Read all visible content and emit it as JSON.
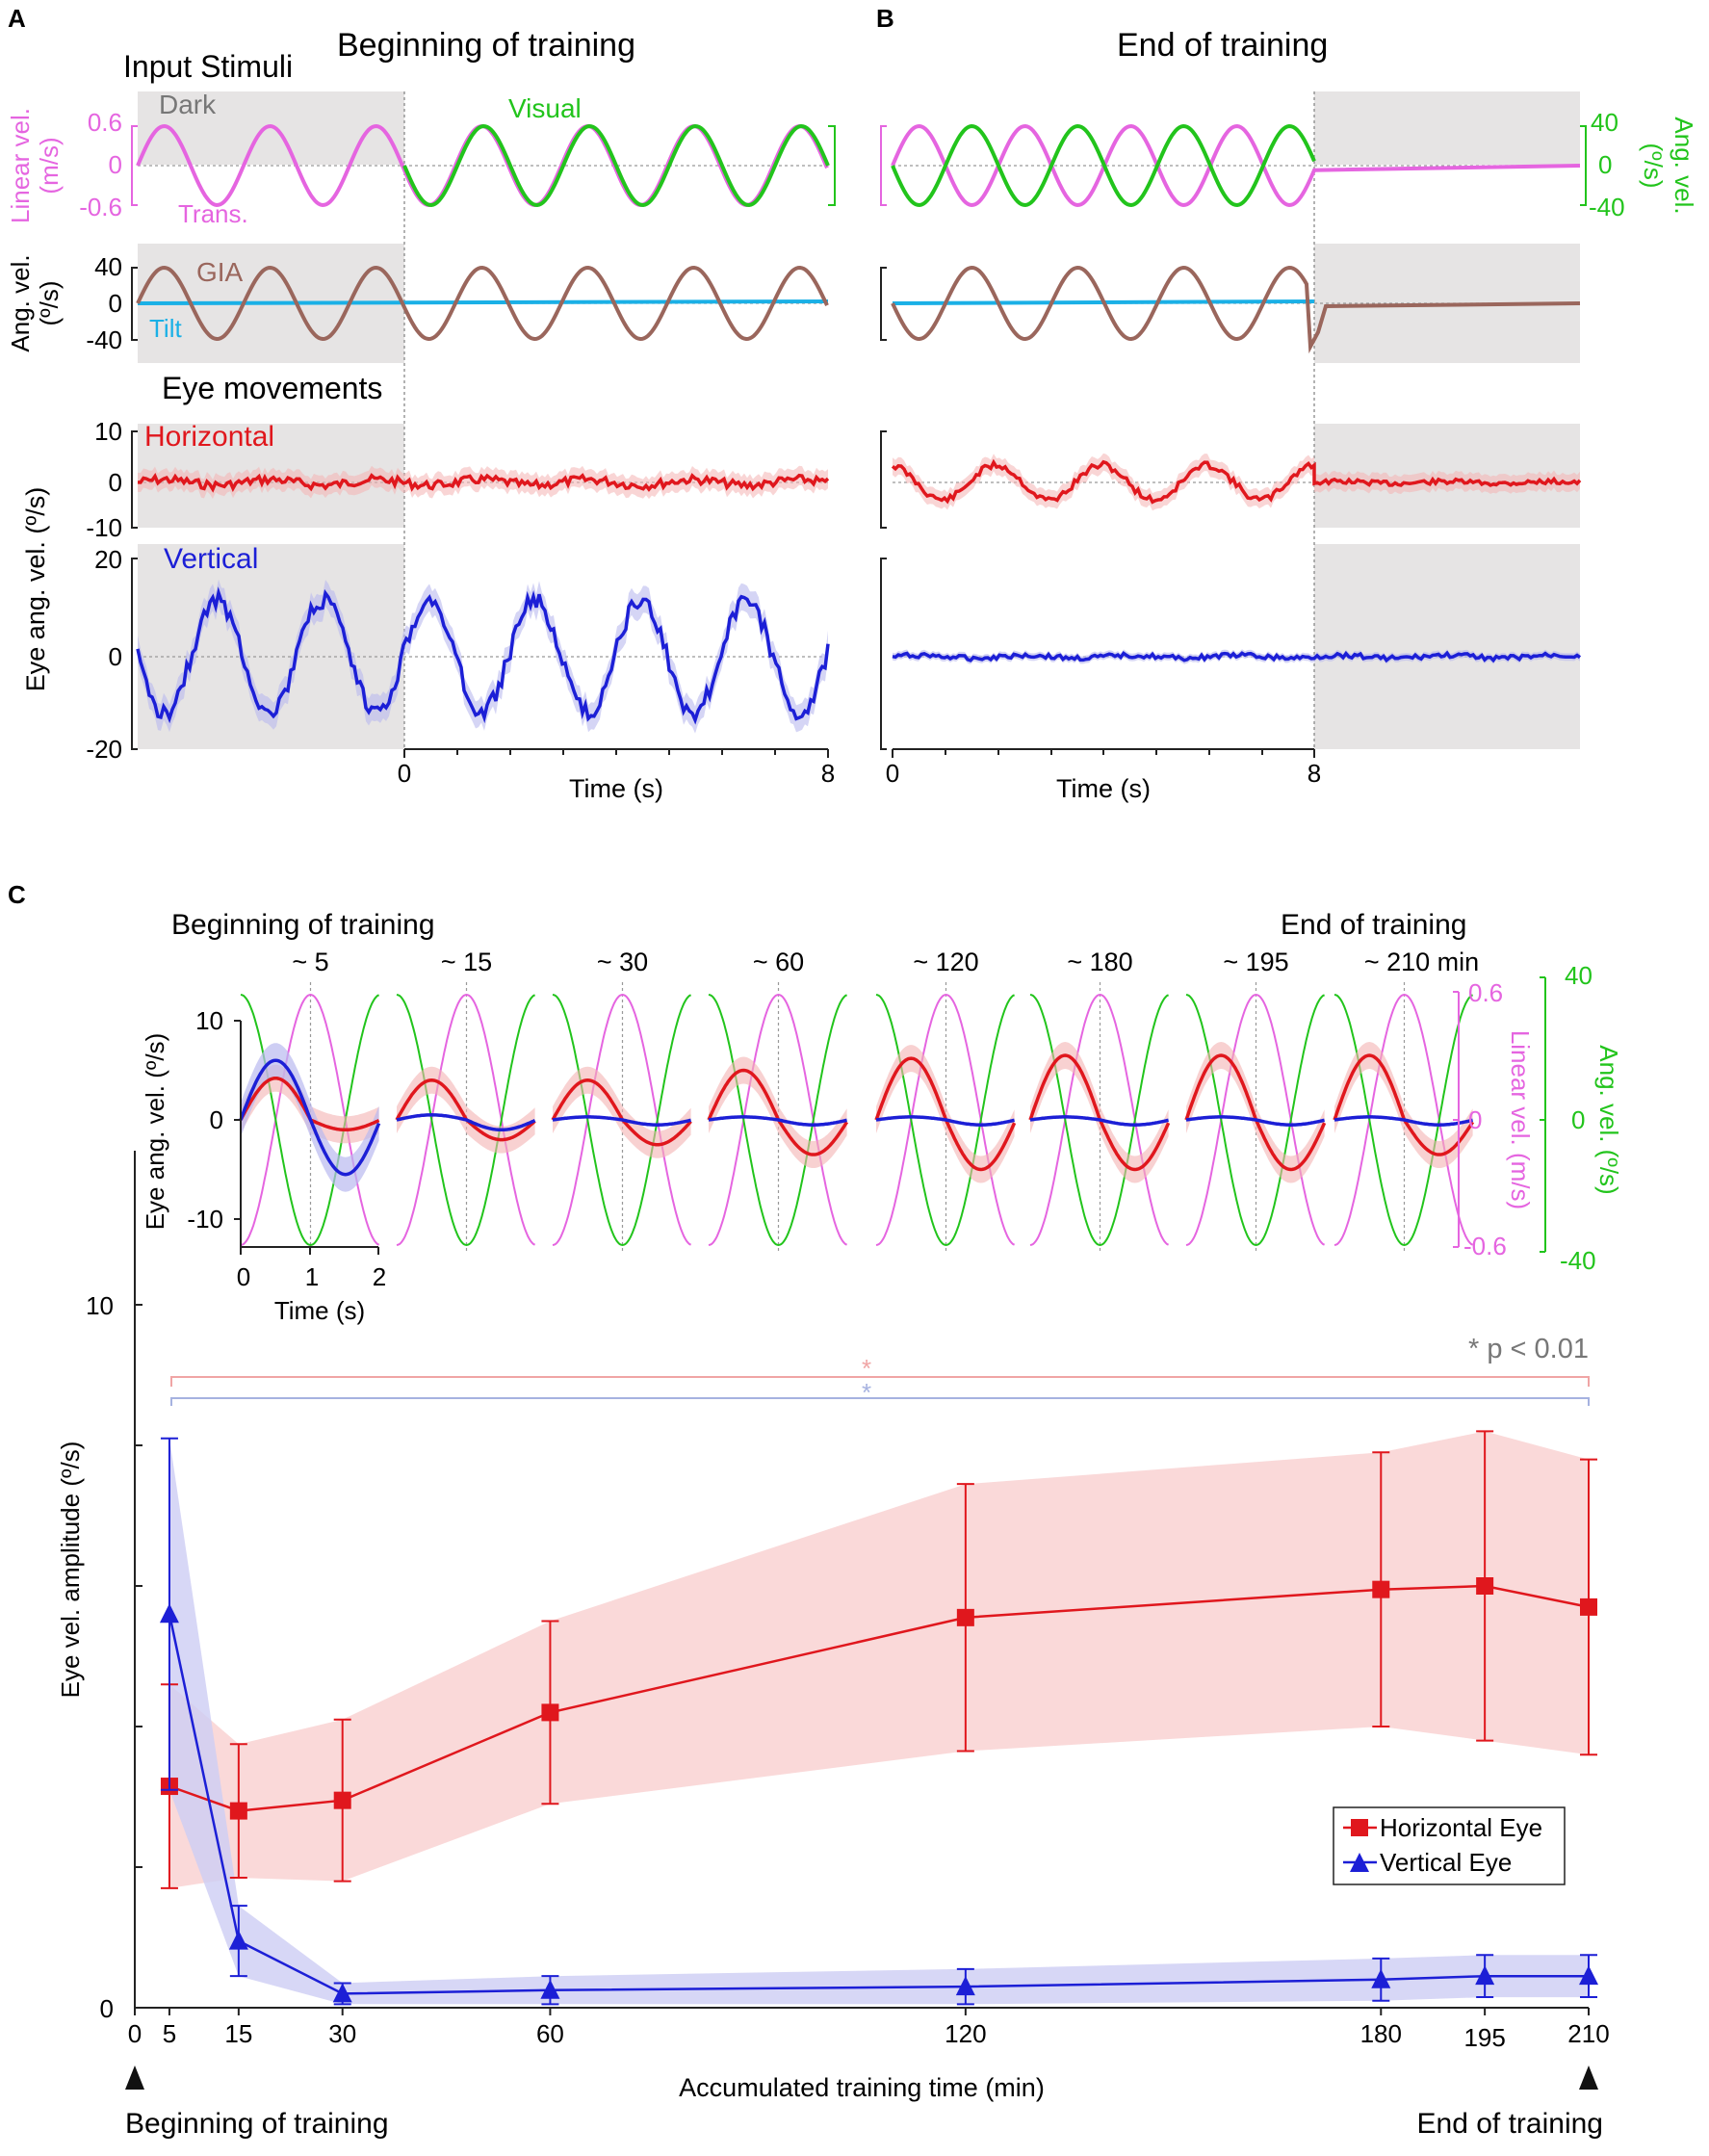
{
  "panels": {
    "A": {
      "letter": "A",
      "title": "Beginning of training"
    },
    "B": {
      "letter": "B",
      "title": "End of training"
    },
    "C": {
      "letter": "C"
    }
  },
  "section_labels": {
    "input": "Input Stimuli",
    "eye": "Eye movements"
  },
  "stim_labels": {
    "dark": "Dark",
    "visual": "Visual",
    "trans": "Trans.",
    "gia": "GIA",
    "tilt": "Tilt",
    "horizontal": "Horizontal",
    "vertical": "Vertical"
  },
  "axis_text": {
    "linear_vel_label": "Linear vel.",
    "linear_vel_unit": "(m/s)",
    "ang_vel_label": "Ang. vel.",
    "ang_vel_unit": "(º/s)",
    "eye_ang_vel": "Eye ang. vel. (º/s)",
    "time": "Time (s)",
    "lin_ticks": [
      "0.6",
      "0",
      "-0.6"
    ],
    "ang_ticks": [
      "40",
      "0",
      "-40"
    ],
    "horiz_ticks": [
      "10",
      "0",
      "-10"
    ],
    "vert_ticks": [
      "20",
      "0",
      "-20"
    ],
    "time_ticks_A": [
      "0",
      "8"
    ],
    "time_ticks_B": [
      "0",
      "8"
    ]
  },
  "inset": {
    "group_title_begin": "Beginning of training",
    "group_title_end": "End of training",
    "time_labels": [
      "~ 5",
      "~ 15",
      "~ 30",
      "~ 60",
      "~ 120",
      "~ 180",
      "~ 195",
      "~ 210 min"
    ],
    "eye_ticks": [
      "10",
      "0",
      "-10"
    ],
    "time_ticks": [
      "0",
      "1",
      "2"
    ],
    "lin_ticks": [
      "0.6",
      "0",
      "-0.6"
    ],
    "ang_ticks": [
      "40",
      "0",
      "-40"
    ],
    "eye_label": "Eye ang. vel. (º/s)",
    "lin_label": "Linear vel. (m/s)",
    "ang_label": "Ang. vel. (º/s)",
    "time_label": "Time (s)",
    "h_peak": [
      4.2,
      4,
      4,
      5,
      6.2,
      6.5,
      6.5,
      6.5
    ],
    "h_trough": [
      -1,
      -2,
      -2.5,
      -3.5,
      -5,
      -5,
      -5,
      -3.5
    ],
    "v_peak": [
      6,
      0.5,
      0.3,
      0.3,
      0.3,
      0.3,
      0.3,
      0.3
    ],
    "v_trough": [
      -5.5,
      -1,
      -0.5,
      -0.5,
      -0.5,
      -0.5,
      -0.5,
      -0.5
    ]
  },
  "significance": {
    "star": "*",
    "text": "* p < 0.01"
  },
  "bottom_labels": {
    "beginning": "Beginning of  training",
    "end": "End of training"
  },
  "chart_data": {
    "type": "line",
    "title": "",
    "xlabel": "Accumulated training time (min)",
    "ylabel": "Eye vel. amplitude (º/s)",
    "xlim": [
      0,
      210
    ],
    "ylim": [
      0,
      10
    ],
    "x_ticks": [
      0,
      5,
      15,
      30,
      60,
      120,
      180,
      195,
      210
    ],
    "y_tick_labels": [
      "0",
      "10"
    ],
    "series": [
      {
        "name": "Horizontal Eye",
        "color": "#e0171d",
        "marker": "square",
        "x": [
          5,
          15,
          30,
          60,
          120,
          180,
          195,
          210
        ],
        "y": [
          3.15,
          2.8,
          2.95,
          4.2,
          5.55,
          5.95,
          6.0,
          5.7
        ],
        "err": [
          1.45,
          0.95,
          1.15,
          1.3,
          1.9,
          1.95,
          2.2,
          2.1
        ]
      },
      {
        "name": "Vertical Eye",
        "color": "#1c1fd6",
        "marker": "triangle",
        "x": [
          5,
          15,
          30,
          60,
          120,
          180,
          195,
          210
        ],
        "y": [
          5.6,
          0.95,
          0.2,
          0.25,
          0.3,
          0.4,
          0.45,
          0.45
        ],
        "err": [
          2.5,
          0.5,
          0.15,
          0.2,
          0.25,
          0.3,
          0.3,
          0.3
        ]
      }
    ]
  }
}
